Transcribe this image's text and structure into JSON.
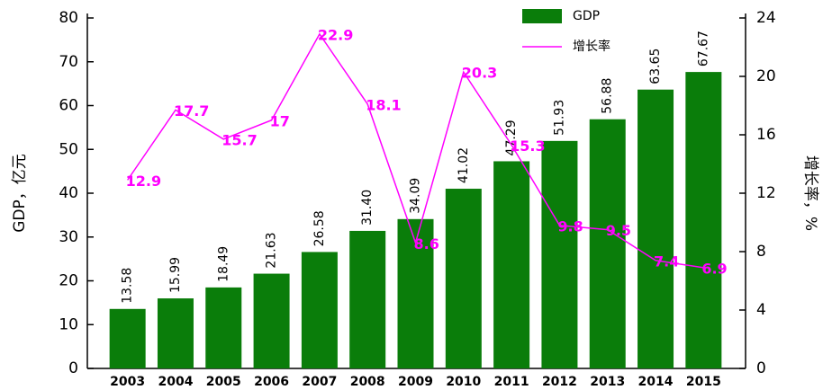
{
  "chart_data": {
    "type": "bar_line",
    "categories": [
      "2003",
      "2004",
      "2005",
      "2006",
      "2007",
      "2008",
      "2009",
      "2010",
      "2011",
      "2012",
      "2013",
      "2014",
      "2015"
    ],
    "series": [
      {
        "name": "GDP",
        "type": "bar",
        "color": "#0a7d0a",
        "values": [
          13.58,
          15.99,
          18.49,
          21.63,
          26.58,
          31.4,
          34.09,
          41.02,
          47.29,
          51.93,
          56.88,
          63.65,
          67.67
        ],
        "value_labels": [
          "13.58",
          "15.99",
          "18.49",
          "21.63",
          "26.58",
          "31.40",
          "34.09",
          "41.02",
          "47.29",
          "51.93",
          "56.88",
          "63.65",
          "67.67"
        ]
      },
      {
        "name": "增长率",
        "type": "line",
        "axis": "y2",
        "color": "#ff00ff",
        "values": [
          12.9,
          17.7,
          15.7,
          17,
          22.9,
          18.1,
          8.6,
          20.3,
          15.3,
          9.8,
          9.5,
          7.4,
          6.9
        ]
      }
    ],
    "ylabel": "GDP，亿元",
    "y2label": "增长率，%",
    "ylim": [
      0,
      80
    ],
    "yticks": [
      0,
      10,
      20,
      30,
      40,
      50,
      60,
      70,
      80
    ],
    "y2lim": [
      0,
      24
    ],
    "y2ticks": [
      0,
      4,
      8,
      12,
      16,
      20,
      24
    ],
    "legend": "top"
  }
}
